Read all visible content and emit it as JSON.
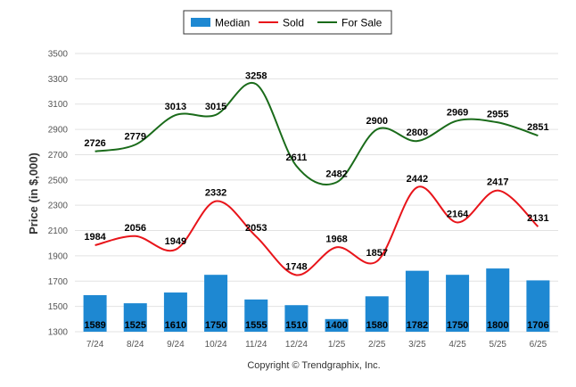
{
  "chart_data": {
    "type": "bar",
    "categories": [
      "7/24",
      "8/24",
      "9/24",
      "10/24",
      "11/24",
      "12/24",
      "1/25",
      "2/25",
      "3/25",
      "4/25",
      "5/25",
      "6/25"
    ],
    "series": [
      {
        "name": "Median",
        "type": "bar",
        "color": "#1e88d2",
        "values": [
          1589,
          1525,
          1610,
          1750,
          1555,
          1510,
          1400,
          1580,
          1782,
          1750,
          1800,
          1706
        ]
      },
      {
        "name": "Sold",
        "type": "line",
        "color": "#e8141a",
        "values": [
          1984,
          2056,
          1949,
          2332,
          2053,
          1748,
          1968,
          1857,
          2442,
          2164,
          2417,
          2131
        ]
      },
      {
        "name": "For Sale",
        "type": "line",
        "color": "#1a6b1a",
        "values": [
          2726,
          2779,
          3013,
          3015,
          3258,
          2611,
          2482,
          2900,
          2808,
          2969,
          2955,
          2851
        ]
      }
    ],
    "ylabel": "Price (in $,000)",
    "ylim": [
      1300,
      3500
    ],
    "yticks": [
      1300,
      1500,
      1700,
      1900,
      2100,
      2300,
      2500,
      2700,
      2900,
      3100,
      3300,
      3500
    ],
    "grid": true,
    "legend_position": "top-center"
  },
  "footer": {
    "copyright": "Copyright © Trendgraphix, Inc."
  }
}
